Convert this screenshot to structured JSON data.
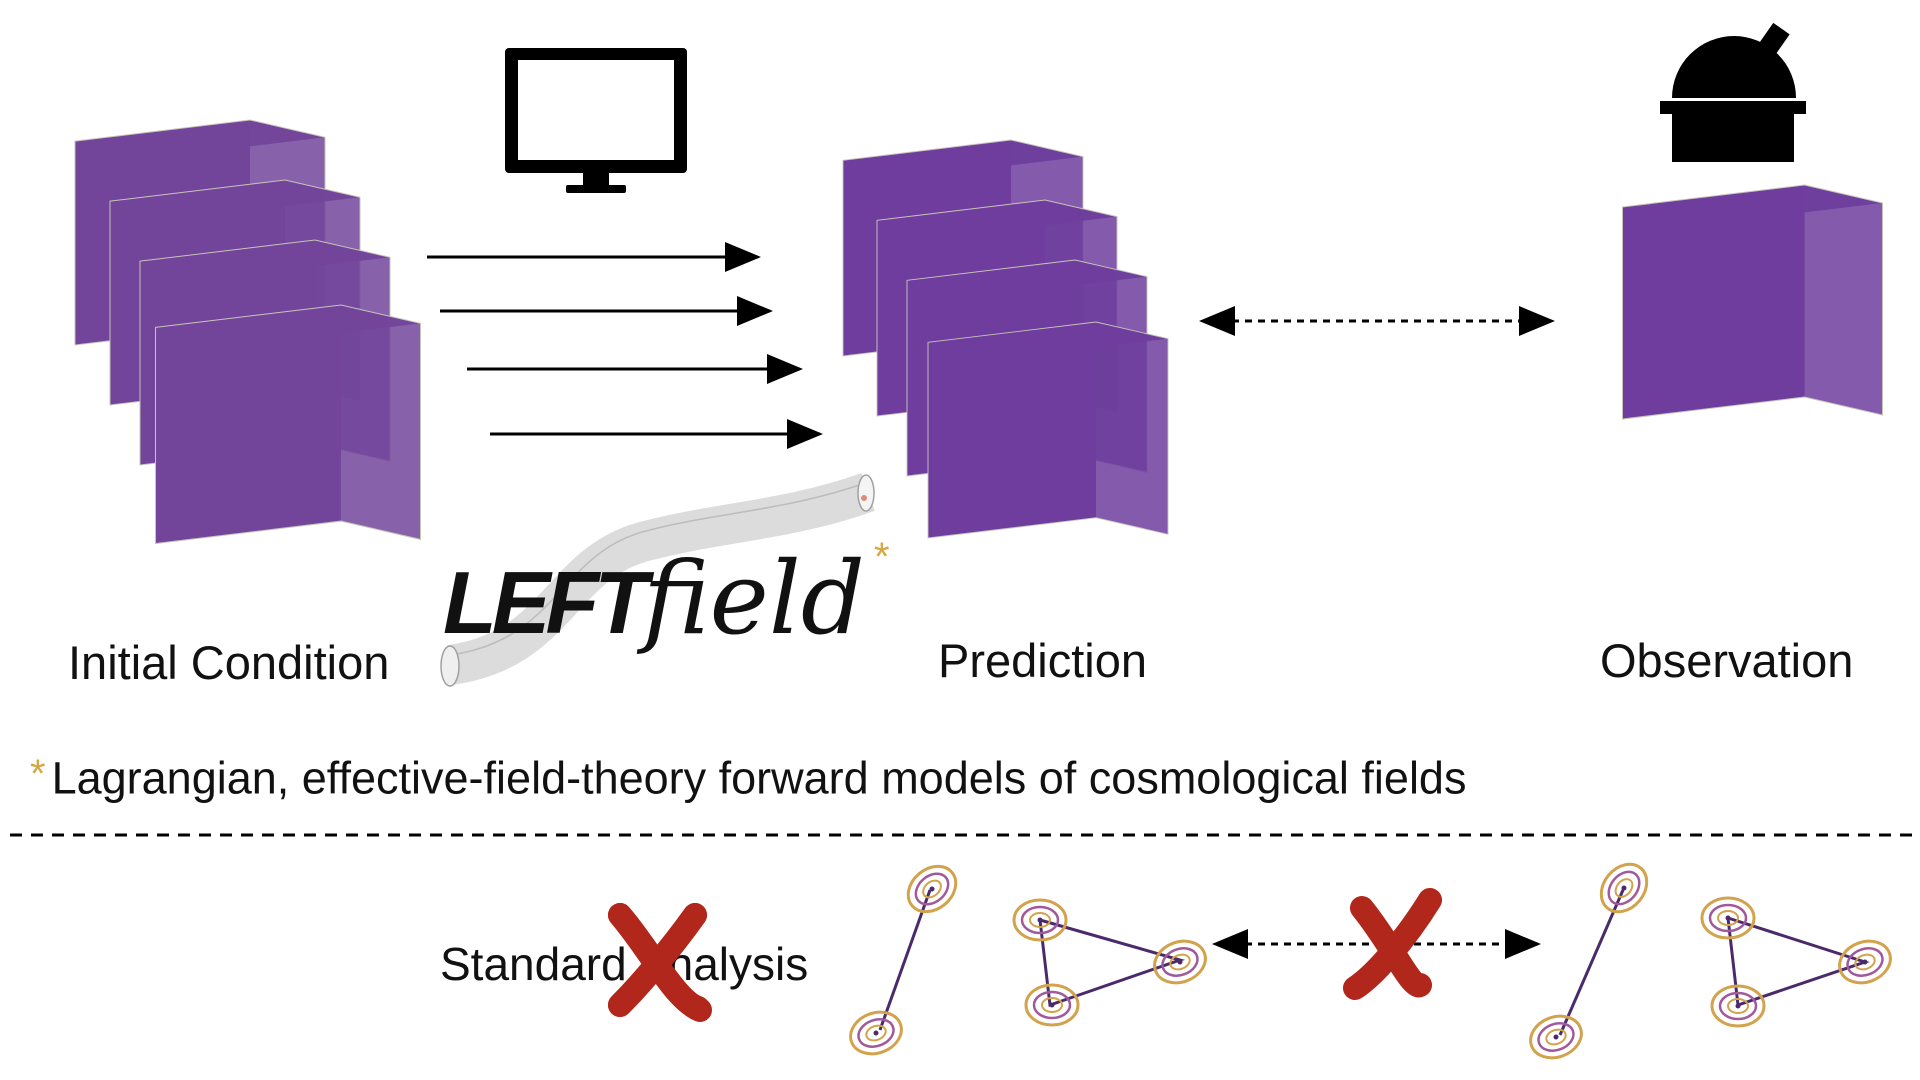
{
  "labels": {
    "initial_condition": "Initial Condition",
    "prediction": "Prediction",
    "observation": "Observation",
    "standard_analysis": "Standard Analysis"
  },
  "logo": {
    "text_bold": "LEFT",
    "text_script": "field",
    "asterisk": "*"
  },
  "footnote": {
    "marker": "*",
    "text": "Lagrangian, effective-field-theory forward models of cosmological fields"
  },
  "icons": {
    "computer": "computer-monitor-icon",
    "telescope": "observatory-icon",
    "reject": "red-x-icon"
  },
  "colors": {
    "field_dark": "#2d0f55",
    "field_mid": "#21908c",
    "field_bright": "#f5e61f",
    "asterisk": "#d4a843",
    "reject_red": "#b1271b",
    "contour_gold": "#d2a24c",
    "contour_purple": "#a05a9c",
    "line_purple": "#4a2a6a"
  }
}
